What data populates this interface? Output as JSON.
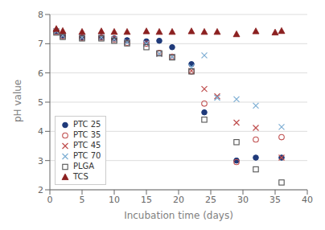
{
  "chart_data": {
    "type": "scatter",
    "title": "",
    "xlabel": "Incubation time (days)",
    "ylabel": "pH value",
    "xlim": [
      0,
      40
    ],
    "ylim": [
      2.0,
      8.0
    ],
    "xticks": [
      0,
      5,
      10,
      15,
      20,
      25,
      30,
      35,
      40
    ],
    "yticks": [
      2.0,
      3.0,
      4.0,
      5.0,
      6.0,
      7.0,
      8.0
    ],
    "grid": "y",
    "legend": "lower left",
    "series": [
      {
        "name": "PTC 25",
        "color": "#1f3a7a",
        "marker": "circle",
        "x": [
          1,
          2,
          5,
          8,
          10,
          12,
          15,
          17,
          19,
          22,
          24,
          29,
          32,
          36
        ],
        "values": [
          7.43,
          7.28,
          7.22,
          7.23,
          7.18,
          7.12,
          7.08,
          7.1,
          6.88,
          6.3,
          4.65,
          3.0,
          3.1,
          3.1
        ]
      },
      {
        "name": "PTC 35",
        "color": "#c05050",
        "marker": "circle-open",
        "x": [
          1,
          2,
          5,
          8,
          10,
          12,
          15,
          17,
          19,
          22,
          24,
          29,
          32,
          36
        ],
        "values": [
          7.41,
          7.26,
          7.2,
          7.21,
          7.15,
          7.03,
          7.0,
          6.68,
          6.55,
          6.05,
          4.95,
          2.95,
          3.72,
          3.8
        ]
      },
      {
        "name": "PTC 45",
        "color": "#c05050",
        "marker": "x",
        "x": [
          1,
          2,
          5,
          8,
          10,
          12,
          15,
          17,
          19,
          22,
          24,
          26,
          29,
          32,
          36
        ],
        "values": [
          7.43,
          7.28,
          7.22,
          7.22,
          7.15,
          7.05,
          7.0,
          6.65,
          6.55,
          6.07,
          5.45,
          5.2,
          4.3,
          4.12,
          3.1
        ]
      },
      {
        "name": "PTC 70",
        "color": "#7fafd4",
        "marker": "x",
        "x": [
          1,
          2,
          5,
          8,
          10,
          12,
          15,
          17,
          19,
          22,
          24,
          26,
          29,
          32,
          36
        ],
        "values": [
          7.43,
          7.28,
          7.22,
          7.22,
          7.15,
          7.05,
          7.0,
          6.65,
          6.55,
          6.2,
          6.6,
          5.15,
          5.1,
          4.88,
          4.15
        ]
      },
      {
        "name": "PLGA",
        "color": "#555555",
        "marker": "square-open",
        "x": [
          1,
          2,
          5,
          8,
          10,
          12,
          15,
          17,
          19,
          22,
          24,
          29,
          32,
          36
        ],
        "values": [
          7.38,
          7.23,
          7.18,
          7.18,
          7.1,
          7.01,
          6.88,
          6.67,
          6.53,
          6.05,
          4.4,
          3.63,
          2.7,
          2.25
        ]
      },
      {
        "name": "TCS",
        "color": "#8B2020",
        "marker": "triangle",
        "x": [
          1,
          2,
          5,
          8,
          10,
          12,
          15,
          17,
          19,
          22,
          24,
          26,
          29,
          32,
          35,
          36
        ],
        "values": [
          7.5,
          7.43,
          7.4,
          7.42,
          7.4,
          7.4,
          7.42,
          7.4,
          7.4,
          7.42,
          7.4,
          7.4,
          7.32,
          7.42,
          7.38,
          7.43
        ]
      }
    ]
  }
}
